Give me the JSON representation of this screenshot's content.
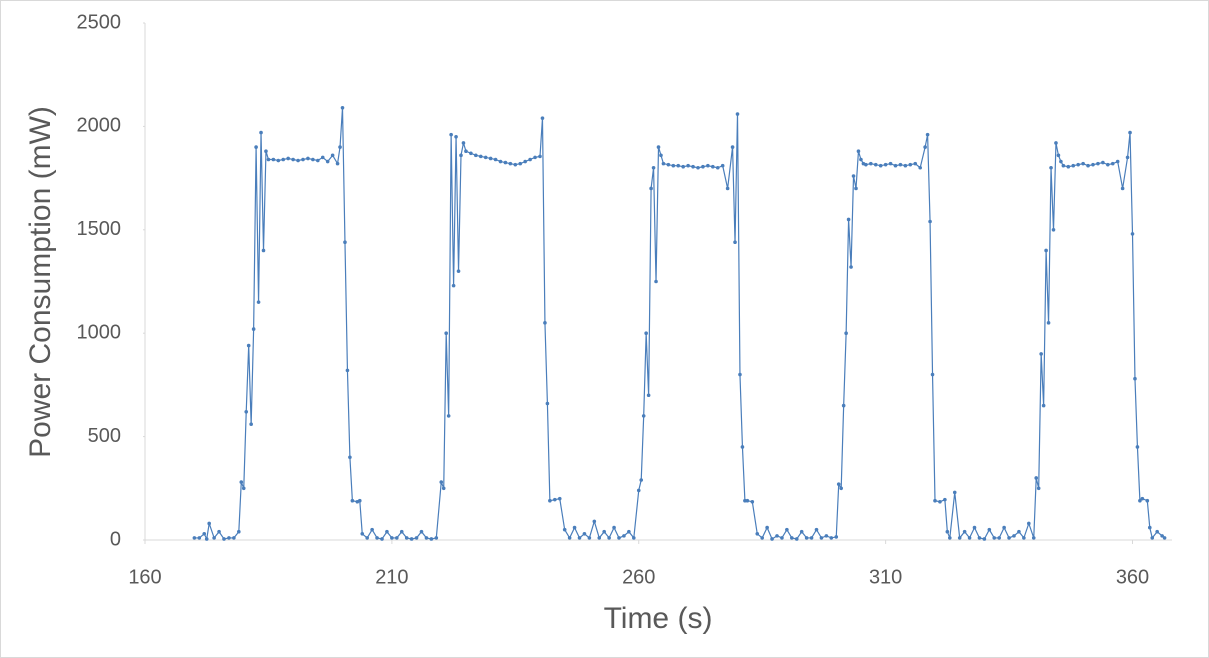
{
  "chart_data": {
    "type": "line",
    "x_label": "Time (s)",
    "y_label": "Power Consumption (mW)",
    "x": [
      170,
      171,
      172,
      172.5,
      173,
      174,
      175,
      176,
      177,
      178,
      179,
      179.5,
      180,
      180.5,
      181,
      181.5,
      182,
      182.5,
      183,
      183.5,
      184,
      184.5,
      185,
      186,
      187,
      188,
      189,
      190,
      191,
      192,
      193,
      194,
      195,
      196,
      197,
      198,
      199,
      199.5,
      200,
      200.5,
      201,
      201.5,
      202,
      203,
      203.5,
      204,
      205,
      206,
      207,
      208,
      209,
      210,
      211,
      212,
      213,
      214,
      215,
      216,
      217,
      218,
      219,
      220,
      220.5,
      221,
      221.5,
      222,
      222.5,
      223,
      223.5,
      224,
      224.5,
      225,
      226,
      227,
      228,
      229,
      230,
      231,
      232,
      233,
      234,
      235,
      236,
      237,
      238,
      239,
      240,
      240.5,
      241,
      241.5,
      242,
      243,
      244,
      245,
      246,
      247,
      248,
      249,
      250,
      251,
      252,
      253,
      254,
      255,
      256,
      257,
      258,
      259,
      260,
      260.5,
      261,
      261.5,
      262,
      262.5,
      263,
      263.5,
      264,
      264.5,
      265,
      266,
      267,
      268,
      269,
      270,
      271,
      272,
      273,
      274,
      275,
      276,
      277,
      278,
      279,
      279.5,
      280,
      280.5,
      281,
      281.5,
      282,
      283,
      284,
      285,
      286,
      287,
      288,
      289,
      290,
      291,
      292,
      293,
      294,
      295,
      296,
      297,
      298,
      299,
      300,
      300.5,
      301,
      301.5,
      302,
      302.5,
      303,
      303.5,
      304,
      304.5,
      305,
      305.5,
      306,
      307,
      308,
      309,
      310,
      311,
      312,
      313,
      314,
      315,
      316,
      317,
      318,
      318.5,
      319,
      319.5,
      320,
      321,
      322,
      322.5,
      323,
      324,
      325,
      326,
      327,
      328,
      329,
      330,
      331,
      332,
      333,
      334,
      335,
      336,
      337,
      338,
      339,
      340,
      340.5,
      341,
      341.5,
      342,
      342.5,
      343,
      343.5,
      344,
      344.5,
      345,
      345.5,
      346,
      347,
      348,
      349,
      350,
      351,
      352,
      353,
      354,
      355,
      356,
      357,
      358,
      359,
      359.5,
      360,
      360.5,
      361,
      361.5,
      362,
      363,
      363.5,
      364,
      365,
      366,
      366.5
    ],
    "values": [
      10,
      10,
      30,
      5,
      80,
      10,
      40,
      5,
      10,
      10,
      40,
      280,
      250,
      620,
      940,
      560,
      1020,
      1900,
      1150,
      1970,
      1400,
      1880,
      1840,
      1840,
      1835,
      1840,
      1845,
      1840,
      1835,
      1840,
      1845,
      1840,
      1835,
      1850,
      1830,
      1860,
      1820,
      1900,
      2090,
      1440,
      820,
      400,
      190,
      185,
      190,
      30,
      10,
      50,
      10,
      5,
      40,
      10,
      10,
      40,
      10,
      5,
      10,
      40,
      10,
      5,
      10,
      280,
      250,
      1000,
      600,
      1960,
      1230,
      1950,
      1300,
      1860,
      1920,
      1880,
      1870,
      1860,
      1855,
      1850,
      1845,
      1840,
      1830,
      1825,
      1820,
      1815,
      1820,
      1830,
      1840,
      1850,
      1855,
      2040,
      1050,
      660,
      190,
      195,
      200,
      50,
      10,
      60,
      10,
      30,
      10,
      90,
      10,
      40,
      10,
      60,
      10,
      20,
      40,
      10,
      240,
      290,
      600,
      1000,
      700,
      1700,
      1800,
      1250,
      1900,
      1860,
      1820,
      1815,
      1810,
      1810,
      1805,
      1810,
      1805,
      1800,
      1805,
      1810,
      1805,
      1800,
      1810,
      1700,
      1900,
      1440,
      2060,
      800,
      450,
      190,
      190,
      185,
      30,
      10,
      60,
      5,
      20,
      10,
      50,
      10,
      5,
      40,
      10,
      10,
      50,
      10,
      20,
      10,
      15,
      270,
      250,
      650,
      1000,
      1550,
      1320,
      1760,
      1700,
      1880,
      1840,
      1820,
      1815,
      1820,
      1815,
      1810,
      1815,
      1820,
      1810,
      1815,
      1810,
      1815,
      1820,
      1800,
      1900,
      1960,
      1540,
      800,
      190,
      185,
      195,
      40,
      10,
      230,
      10,
      40,
      10,
      60,
      10,
      5,
      50,
      10,
      10,
      60,
      10,
      20,
      40,
      10,
      80,
      10,
      300,
      250,
      900,
      650,
      1400,
      1050,
      1800,
      1500,
      1920,
      1860,
      1830,
      1810,
      1805,
      1810,
      1815,
      1820,
      1810,
      1815,
      1820,
      1825,
      1815,
      1820,
      1830,
      1700,
      1850,
      1970,
      1480,
      780,
      450,
      190,
      200,
      190,
      60,
      10,
      40,
      20,
      10
    ],
    "color": "#4a7ebb",
    "xlim": [
      160,
      368
    ],
    "xticks": [
      160,
      210,
      260,
      310,
      360
    ],
    "ylim": [
      0,
      2500
    ],
    "yticks": [
      0,
      500,
      1000,
      1500,
      2000,
      2500
    ],
    "grid": false
  }
}
